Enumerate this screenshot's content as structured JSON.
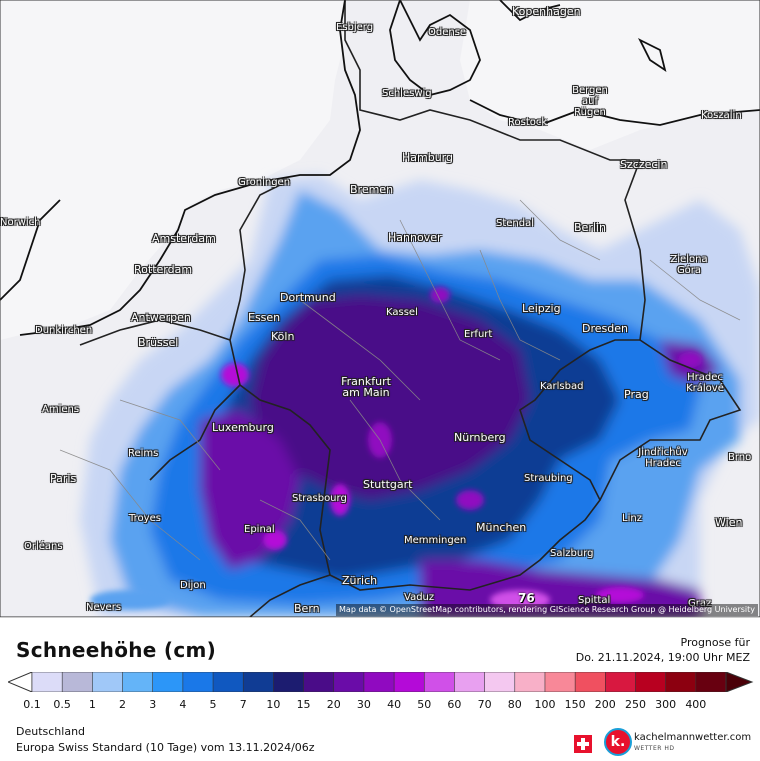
{
  "map": {
    "attribution": "Map data © OpenStreetMap contributors, rendering GIScience Research Group @ Heidelberg University",
    "max_value": "76",
    "cities": [
      {
        "name": "Esbjerg"
      },
      {
        "name": "Odense"
      },
      {
        "name": "Kopenhagen"
      },
      {
        "name": "Schleswig"
      },
      {
        "name": "Bergen auf Rügen"
      },
      {
        "name": "Rostock"
      },
      {
        "name": "Koszalin"
      },
      {
        "name": "Hamburg"
      },
      {
        "name": "Szczecin"
      },
      {
        "name": "Groningen"
      },
      {
        "name": "Bremen"
      },
      {
        "name": "Norwich"
      },
      {
        "name": "Amsterdam"
      },
      {
        "name": "Stendal"
      },
      {
        "name": "Berlin"
      },
      {
        "name": "Hannover"
      },
      {
        "name": "Rotterdam"
      },
      {
        "name": "Zielona Góra"
      },
      {
        "name": "Dortmund"
      },
      {
        "name": "Antwerpen"
      },
      {
        "name": "Essen"
      },
      {
        "name": "Kassel"
      },
      {
        "name": "Leipzig"
      },
      {
        "name": "Dunkirchen"
      },
      {
        "name": "Köln"
      },
      {
        "name": "Erfurt"
      },
      {
        "name": "Dresden"
      },
      {
        "name": "Brüssel"
      },
      {
        "name": "Frankfurt am Main"
      },
      {
        "name": "Karlsbad"
      },
      {
        "name": "Hradec Králové"
      },
      {
        "name": "Amiens"
      },
      {
        "name": "Prag"
      },
      {
        "name": "Luxemburg"
      },
      {
        "name": "Nürnberg"
      },
      {
        "name": "Jindřichův Hradec"
      },
      {
        "name": "Reims"
      },
      {
        "name": "Brno"
      },
      {
        "name": "Paris"
      },
      {
        "name": "Straubing"
      },
      {
        "name": "Stuttgart"
      },
      {
        "name": "Strasbourg"
      },
      {
        "name": "Troyes"
      },
      {
        "name": "Linz"
      },
      {
        "name": "Epinal"
      },
      {
        "name": "München"
      },
      {
        "name": "Wien"
      },
      {
        "name": "Memmingen"
      },
      {
        "name": "Orléans"
      },
      {
        "name": "Salzburg"
      },
      {
        "name": "Dijon"
      },
      {
        "name": "Zürich"
      },
      {
        "name": "Vaduz"
      },
      {
        "name": "Bern"
      },
      {
        "name": "Nevers"
      },
      {
        "name": "Spittal"
      },
      {
        "name": "Graz"
      }
    ]
  },
  "legend": {
    "title": "Schneehöhe (cm)",
    "forecast_label": "Prognose für",
    "forecast_date": "Do. 21.11.2024, 19:00 Uhr MEZ",
    "ticks": [
      "0.1",
      "0.5",
      "1",
      "2",
      "3",
      "4",
      "5",
      "7",
      "10",
      "15",
      "20",
      "30",
      "40",
      "50",
      "60",
      "70",
      "80",
      "100",
      "150",
      "200",
      "250",
      "300",
      "400"
    ],
    "colors": [
      "#dcdcf8",
      "#b8b8d8",
      "#a0c8f8",
      "#64b4f8",
      "#2c96f8",
      "#1a78e8",
      "#1058c0",
      "#103c94",
      "#1c1c70",
      "#4a0c88",
      "#6a0ca8",
      "#900ac0",
      "#b40ad8",
      "#d050e8",
      "#e8a0f0",
      "#f4c8f0",
      "#f8b0c8",
      "#f88898",
      "#f05060",
      "#d81840",
      "#b80020",
      "#8c0010",
      "#680010"
    ],
    "region": "Deutschland",
    "model": "Europa Swiss Standard (10 Tage) vom 13.11.2024/06z",
    "brand_name": "kachelmannwetter.com",
    "brand_sub": "WETTER HD",
    "brand_logo_text": "k."
  }
}
